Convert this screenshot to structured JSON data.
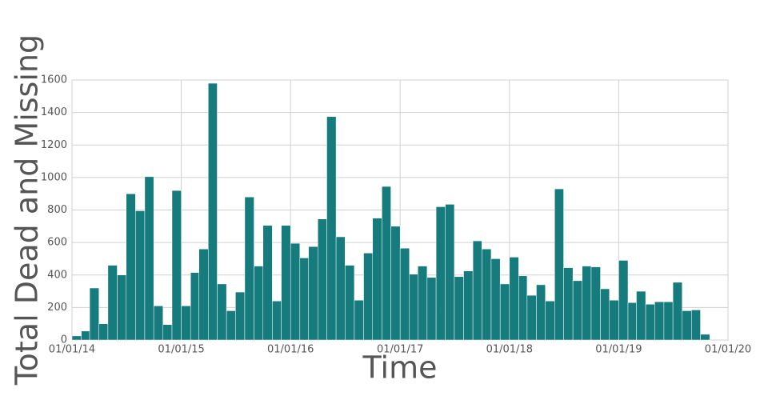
{
  "chart_data": {
    "type": "histogram",
    "x_label": "Time",
    "y_label": "Total Dead and Missing",
    "color": "#167b7d",
    "grid": true,
    "bins": [
      "2014-01-01",
      "2014-02-01",
      "2014-03-01",
      "2014-04-01",
      "2014-05-01",
      "2014-06-01",
      "2014-07-01",
      "2014-08-01",
      "2014-09-01",
      "2014-10-01",
      "2014-11-01",
      "2014-12-01",
      "2015-01-01",
      "2015-02-01",
      "2015-03-01",
      "2015-04-01",
      "2015-05-01",
      "2015-06-01",
      "2015-07-01",
      "2015-08-01",
      "2015-09-01",
      "2015-10-01",
      "2015-11-01",
      "2015-12-01",
      "2016-01-01",
      "2016-02-01",
      "2016-03-01",
      "2016-04-01",
      "2016-05-01",
      "2016-06-01",
      "2016-07-01",
      "2016-08-01",
      "2016-09-01",
      "2016-10-01",
      "2016-11-01",
      "2016-12-01",
      "2017-01-01",
      "2017-02-01",
      "2017-03-01",
      "2017-04-01",
      "2017-05-01",
      "2017-06-01",
      "2017-07-01",
      "2017-08-01",
      "2017-09-01",
      "2017-10-01",
      "2017-11-01",
      "2017-12-01",
      "2018-01-01",
      "2018-02-01",
      "2018-03-01",
      "2018-04-01",
      "2018-05-01",
      "2018-06-01",
      "2018-07-01",
      "2018-08-01",
      "2018-09-01",
      "2018-10-01",
      "2018-11-01",
      "2018-12-01",
      "2019-01-01",
      "2019-02-01",
      "2019-03-01",
      "2019-04-01",
      "2019-05-01",
      "2019-06-01",
      "2019-07-01",
      "2019-08-01",
      "2019-09-01",
      "2019-10-01",
      "2019-11-01"
    ],
    "values": [
      25,
      55,
      320,
      100,
      460,
      400,
      900,
      795,
      1005,
      210,
      95,
      920,
      210,
      415,
      560,
      1580,
      345,
      180,
      295,
      880,
      455,
      705,
      240,
      705,
      595,
      505,
      575,
      745,
      1375,
      635,
      460,
      245,
      535,
      750,
      945,
      700,
      565,
      405,
      455,
      385,
      820,
      835,
      390,
      425,
      610,
      560,
      500,
      345,
      510,
      395,
      275,
      340,
      240,
      930,
      445,
      365,
      455,
      450,
      315,
      245,
      490,
      230,
      300,
      220,
      235,
      235,
      355,
      180,
      185,
      35
    ],
    "xlim": [
      "2014-01-01",
      "2020-01-01"
    ],
    "xticks": [
      {
        "value": "2014-01-01",
        "label": "01/01/14"
      },
      {
        "value": "2015-01-01",
        "label": "01/01/15"
      },
      {
        "value": "2016-01-01",
        "label": "01/01/16"
      },
      {
        "value": "2017-01-01",
        "label": "01/01/17"
      },
      {
        "value": "2018-01-01",
        "label": "01/01/18"
      },
      {
        "value": "2019-01-01",
        "label": "01/01/19"
      },
      {
        "value": "2020-01-01",
        "label": "01/01/20"
      }
    ],
    "ylim": [
      0,
      1600
    ],
    "yticks": [
      0,
      200,
      400,
      600,
      800,
      1000,
      1200,
      1400,
      1600
    ]
  }
}
